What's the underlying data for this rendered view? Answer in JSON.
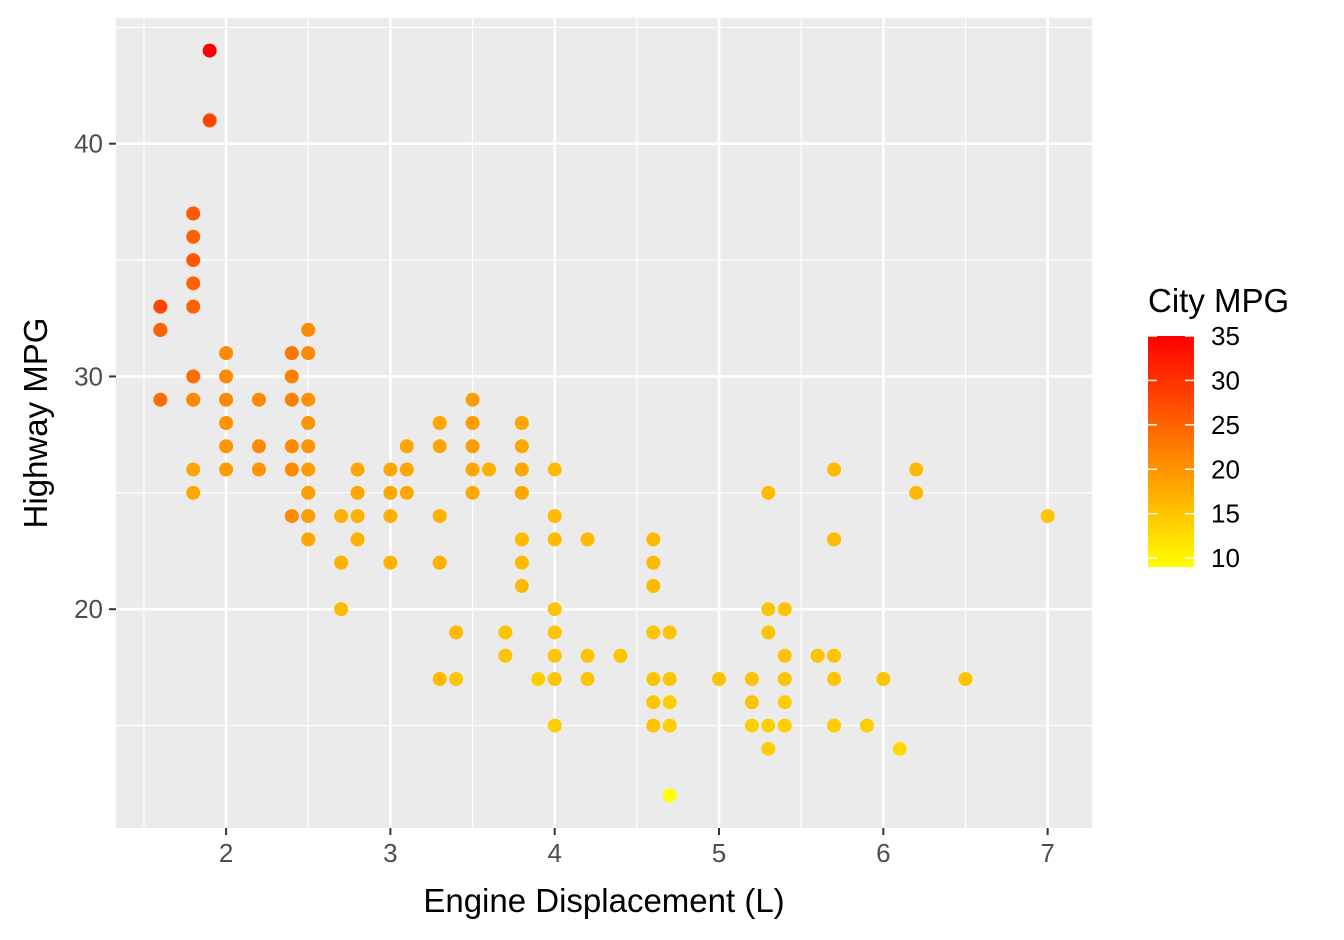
{
  "chart_data": {
    "type": "scatter",
    "title": "",
    "xlabel": "Engine Displacement (L)",
    "ylabel": "Highway MPG",
    "xlim": [
      1.33,
      7.27
    ],
    "ylim": [
      10.6,
      45.4
    ],
    "x_ticks": [
      2,
      3,
      4,
      5,
      6,
      7
    ],
    "y_ticks": [
      20,
      30,
      40
    ],
    "x_tick_labels": [
      "2",
      "3",
      "4",
      "5",
      "6",
      "7"
    ],
    "y_tick_labels": [
      "20",
      "30",
      "40"
    ],
    "grid": true,
    "legend": {
      "title": "City MPG",
      "placement": "right",
      "type": "colorbar",
      "range": [
        9,
        35
      ],
      "ticks": [
        10,
        15,
        20,
        25,
        30,
        35
      ],
      "tick_labels": [
        "10",
        "15",
        "20",
        "25",
        "30",
        "35"
      ],
      "colors": {
        "low": "#ffff00",
        "high": "#ff0000"
      }
    },
    "colors": {
      "panel": "#ebebeb",
      "grid": "#ffffff",
      "tick": "#333333"
    },
    "points": [
      {
        "x": 1.9,
        "y": 44,
        "c": 35
      },
      {
        "x": 1.9,
        "y": 41,
        "c": 28
      },
      {
        "x": 1.8,
        "y": 37,
        "c": 26
      },
      {
        "x": 1.8,
        "y": 36,
        "c": 25
      },
      {
        "x": 1.8,
        "y": 35,
        "c": 26
      },
      {
        "x": 1.8,
        "y": 34,
        "c": 25
      },
      {
        "x": 1.8,
        "y": 33,
        "c": 25
      },
      {
        "x": 1.8,
        "y": 30,
        "c": 24
      },
      {
        "x": 1.8,
        "y": 29,
        "c": 21
      },
      {
        "x": 1.8,
        "y": 29,
        "c": 21
      },
      {
        "x": 1.8,
        "y": 26,
        "c": 18
      },
      {
        "x": 1.8,
        "y": 25,
        "c": 18
      },
      {
        "x": 1.6,
        "y": 33,
        "c": 28
      },
      {
        "x": 1.6,
        "y": 32,
        "c": 25
      },
      {
        "x": 1.6,
        "y": 32,
        "c": 25
      },
      {
        "x": 1.6,
        "y": 29,
        "c": 24
      },
      {
        "x": 2.0,
        "y": 31,
        "c": 21
      },
      {
        "x": 2.0,
        "y": 30,
        "c": 21
      },
      {
        "x": 2.0,
        "y": 29,
        "c": 21
      },
      {
        "x": 2.0,
        "y": 28,
        "c": 20
      },
      {
        "x": 2.0,
        "y": 27,
        "c": 20
      },
      {
        "x": 2.0,
        "y": 26,
        "c": 19
      },
      {
        "x": 2.2,
        "y": 29,
        "c": 21
      },
      {
        "x": 2.2,
        "y": 27,
        "c": 21
      },
      {
        "x": 2.2,
        "y": 26,
        "c": 20
      },
      {
        "x": 2.4,
        "y": 31,
        "c": 23
      },
      {
        "x": 2.4,
        "y": 30,
        "c": 22
      },
      {
        "x": 2.4,
        "y": 29,
        "c": 22
      },
      {
        "x": 2.4,
        "y": 27,
        "c": 21
      },
      {
        "x": 2.4,
        "y": 26,
        "c": 21
      },
      {
        "x": 2.4,
        "y": 24,
        "c": 21
      },
      {
        "x": 2.5,
        "y": 32,
        "c": 21
      },
      {
        "x": 2.5,
        "y": 31,
        "c": 21
      },
      {
        "x": 2.5,
        "y": 29,
        "c": 20
      },
      {
        "x": 2.5,
        "y": 28,
        "c": 20
      },
      {
        "x": 2.5,
        "y": 27,
        "c": 20
      },
      {
        "x": 2.5,
        "y": 26,
        "c": 19
      },
      {
        "x": 2.5,
        "y": 25,
        "c": 19
      },
      {
        "x": 2.5,
        "y": 24,
        "c": 19
      },
      {
        "x": 2.5,
        "y": 23,
        "c": 18
      },
      {
        "x": 2.7,
        "y": 24,
        "c": 17
      },
      {
        "x": 2.7,
        "y": 22,
        "c": 17
      },
      {
        "x": 2.7,
        "y": 20,
        "c": 16
      },
      {
        "x": 2.8,
        "y": 26,
        "c": 18
      },
      {
        "x": 2.8,
        "y": 25,
        "c": 18
      },
      {
        "x": 2.8,
        "y": 24,
        "c": 17
      },
      {
        "x": 2.8,
        "y": 23,
        "c": 17
      },
      {
        "x": 3.0,
        "y": 26,
        "c": 18
      },
      {
        "x": 3.0,
        "y": 25,
        "c": 18
      },
      {
        "x": 3.0,
        "y": 24,
        "c": 17
      },
      {
        "x": 3.0,
        "y": 22,
        "c": 17
      },
      {
        "x": 3.1,
        "y": 27,
        "c": 18
      },
      {
        "x": 3.1,
        "y": 26,
        "c": 18
      },
      {
        "x": 3.1,
        "y": 25,
        "c": 18
      },
      {
        "x": 3.3,
        "y": 28,
        "c": 18
      },
      {
        "x": 3.3,
        "y": 27,
        "c": 18
      },
      {
        "x": 3.3,
        "y": 24,
        "c": 17
      },
      {
        "x": 3.3,
        "y": 22,
        "c": 17
      },
      {
        "x": 3.3,
        "y": 17,
        "c": 16
      },
      {
        "x": 3.4,
        "y": 19,
        "c": 16
      },
      {
        "x": 3.4,
        "y": 17,
        "c": 15
      },
      {
        "x": 3.5,
        "y": 29,
        "c": 19
      },
      {
        "x": 3.5,
        "y": 28,
        "c": 19
      },
      {
        "x": 3.5,
        "y": 27,
        "c": 19
      },
      {
        "x": 3.5,
        "y": 26,
        "c": 18
      },
      {
        "x": 3.5,
        "y": 25,
        "c": 18
      },
      {
        "x": 3.6,
        "y": 26,
        "c": 17
      },
      {
        "x": 3.7,
        "y": 19,
        "c": 15
      },
      {
        "x": 3.7,
        "y": 18,
        "c": 15
      },
      {
        "x": 3.8,
        "y": 28,
        "c": 18
      },
      {
        "x": 3.8,
        "y": 27,
        "c": 18
      },
      {
        "x": 3.8,
        "y": 26,
        "c": 18
      },
      {
        "x": 3.8,
        "y": 25,
        "c": 18
      },
      {
        "x": 3.8,
        "y": 23,
        "c": 16
      },
      {
        "x": 3.8,
        "y": 22,
        "c": 16
      },
      {
        "x": 3.8,
        "y": 21,
        "c": 16
      },
      {
        "x": 3.9,
        "y": 17,
        "c": 14
      },
      {
        "x": 4.0,
        "y": 26,
        "c": 16
      },
      {
        "x": 4.0,
        "y": 24,
        "c": 16
      },
      {
        "x": 4.0,
        "y": 23,
        "c": 16
      },
      {
        "x": 4.0,
        "y": 20,
        "c": 15
      },
      {
        "x": 4.0,
        "y": 19,
        "c": 15
      },
      {
        "x": 4.0,
        "y": 18,
        "c": 15
      },
      {
        "x": 4.0,
        "y": 17,
        "c": 15
      },
      {
        "x": 4.0,
        "y": 15,
        "c": 14
      },
      {
        "x": 4.2,
        "y": 23,
        "c": 16
      },
      {
        "x": 4.2,
        "y": 18,
        "c": 15
      },
      {
        "x": 4.2,
        "y": 17,
        "c": 15
      },
      {
        "x": 4.4,
        "y": 18,
        "c": 15
      },
      {
        "x": 4.6,
        "y": 23,
        "c": 16
      },
      {
        "x": 4.6,
        "y": 22,
        "c": 16
      },
      {
        "x": 4.6,
        "y": 21,
        "c": 16
      },
      {
        "x": 4.6,
        "y": 19,
        "c": 15
      },
      {
        "x": 4.6,
        "y": 17,
        "c": 15
      },
      {
        "x": 4.6,
        "y": 16,
        "c": 15
      },
      {
        "x": 4.6,
        "y": 15,
        "c": 15
      },
      {
        "x": 4.7,
        "y": 19,
        "c": 15
      },
      {
        "x": 4.7,
        "y": 17,
        "c": 15
      },
      {
        "x": 4.7,
        "y": 16,
        "c": 14
      },
      {
        "x": 4.7,
        "y": 15,
        "c": 14
      },
      {
        "x": 4.7,
        "y": 12,
        "c": 9
      },
      {
        "x": 5.0,
        "y": 17,
        "c": 15
      },
      {
        "x": 5.2,
        "y": 17,
        "c": 15
      },
      {
        "x": 5.2,
        "y": 16,
        "c": 15
      },
      {
        "x": 5.2,
        "y": 15,
        "c": 14
      },
      {
        "x": 5.3,
        "y": 25,
        "c": 16
      },
      {
        "x": 5.3,
        "y": 20,
        "c": 15
      },
      {
        "x": 5.3,
        "y": 19,
        "c": 15
      },
      {
        "x": 5.3,
        "y": 15,
        "c": 14
      },
      {
        "x": 5.3,
        "y": 14,
        "c": 14
      },
      {
        "x": 5.4,
        "y": 20,
        "c": 15
      },
      {
        "x": 5.4,
        "y": 18,
        "c": 15
      },
      {
        "x": 5.4,
        "y": 17,
        "c": 15
      },
      {
        "x": 5.4,
        "y": 16,
        "c": 14
      },
      {
        "x": 5.4,
        "y": 15,
        "c": 14
      },
      {
        "x": 5.6,
        "y": 18,
        "c": 15
      },
      {
        "x": 5.7,
        "y": 26,
        "c": 16
      },
      {
        "x": 5.7,
        "y": 23,
        "c": 16
      },
      {
        "x": 5.7,
        "y": 18,
        "c": 15
      },
      {
        "x": 5.7,
        "y": 17,
        "c": 15
      },
      {
        "x": 5.7,
        "y": 15,
        "c": 14
      },
      {
        "x": 5.9,
        "y": 15,
        "c": 14
      },
      {
        "x": 6.0,
        "y": 17,
        "c": 15
      },
      {
        "x": 6.1,
        "y": 14,
        "c": 13
      },
      {
        "x": 6.2,
        "y": 26,
        "c": 16
      },
      {
        "x": 6.2,
        "y": 25,
        "c": 16
      },
      {
        "x": 6.5,
        "y": 17,
        "c": 15
      },
      {
        "x": 7.0,
        "y": 24,
        "c": 15
      }
    ]
  }
}
